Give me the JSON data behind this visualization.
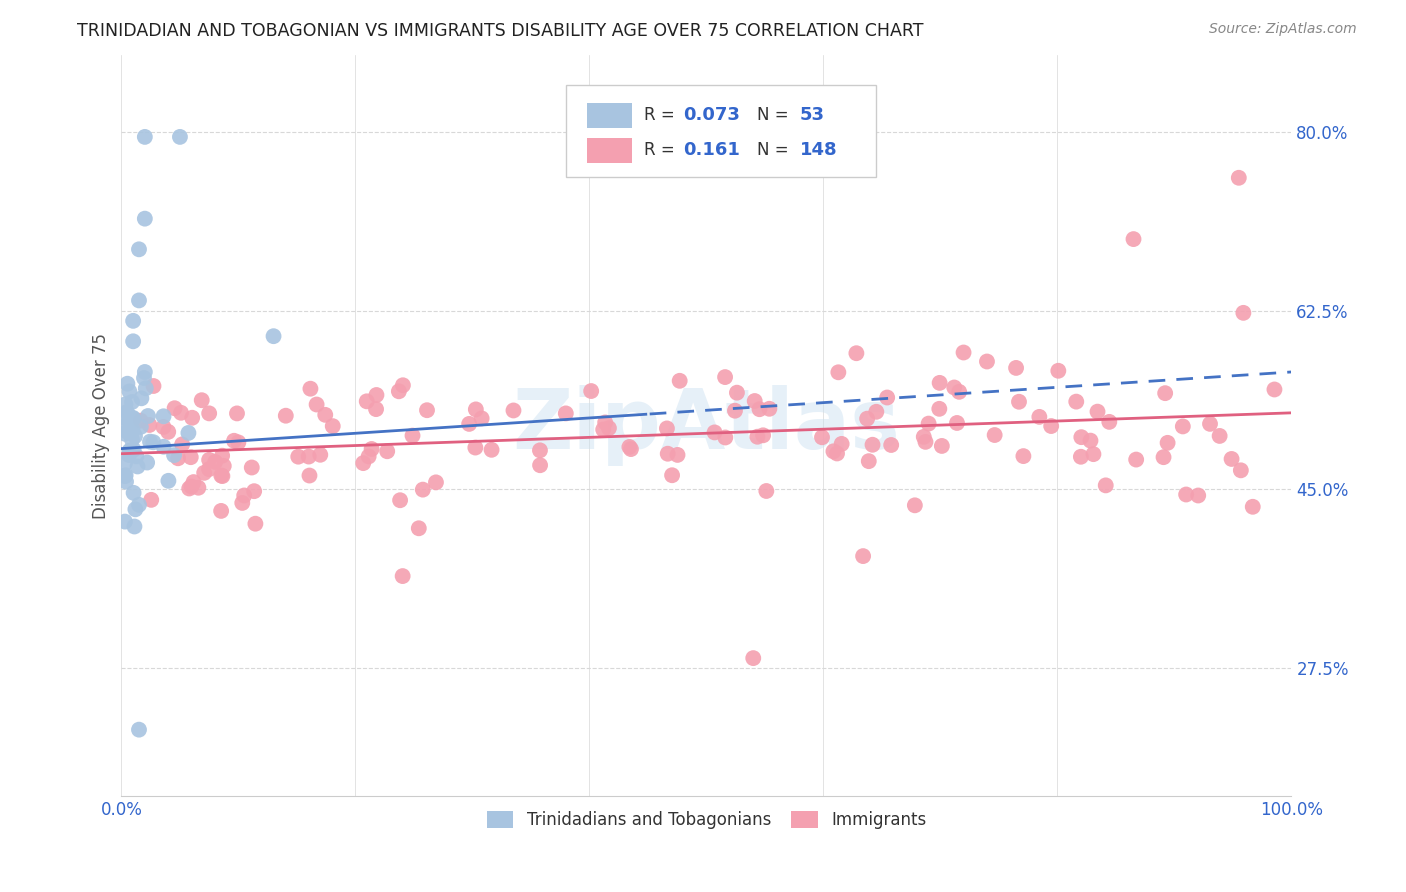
{
  "title": "TRINIDADIAN AND TOBAGONIAN VS IMMIGRANTS DISABILITY AGE OVER 75 CORRELATION CHART",
  "source": "Source: ZipAtlas.com",
  "ylabel": "Disability Age Over 75",
  "xlim": [
    0,
    1
  ],
  "ylim": [
    0.15,
    0.875
  ],
  "yticks": [
    0.275,
    0.45,
    0.625,
    0.8
  ],
  "ytick_labels": [
    "27.5%",
    "45.0%",
    "62.5%",
    "80.0%"
  ],
  "xticks": [
    0.0,
    0.2,
    0.4,
    0.6,
    0.8,
    1.0
  ],
  "xtick_labels": [
    "0.0%",
    "",
    "",
    "",
    "",
    "100.0%"
  ],
  "blue_R": 0.073,
  "blue_N": 53,
  "pink_R": 0.161,
  "pink_N": 148,
  "blue_color": "#a8c4e0",
  "pink_color": "#f4a0b0",
  "blue_line_color": "#4472c4",
  "pink_line_color": "#e06080",
  "legend_label_blue": "Trinidadians and Tobagonians",
  "legend_label_pink": "Immigrants",
  "watermark": "ZipAtlas",
  "background_color": "#ffffff",
  "grid_color": "#d8d8d8",
  "axis_color": "#cccccc",
  "tick_label_color": "#3366cc",
  "ylabel_color": "#555555",
  "title_color": "#222222",
  "source_color": "#888888"
}
